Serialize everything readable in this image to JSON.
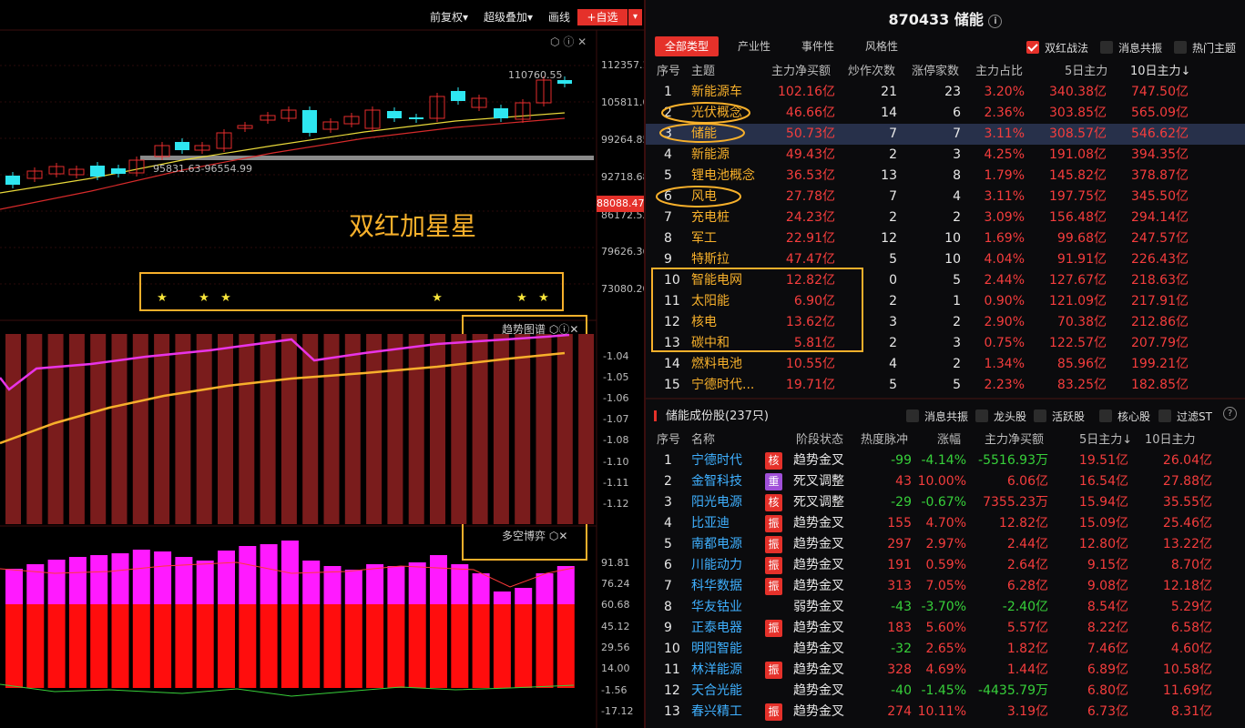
{
  "toolbar": {
    "fq": "前复权▾",
    "super": "超级叠加▾",
    "draw": "画线",
    "add": "+自选",
    "arrow": "▾"
  },
  "chart": {
    "price_max_label": "110760.55",
    "price_min_label": "95831.63-96554.99",
    "current_price": "88088.47",
    "annotation": "双红加星星",
    "y_ticks": [
      "112357.1",
      "105811.0",
      "99264.85",
      "92718.68",
      "86172.52",
      "79626.36",
      "73080.20"
    ],
    "panel2_title": "趋势图谱",
    "panel2_ticks": [
      "-1.04",
      "-1.05",
      "-1.06",
      "-1.07",
      "-1.08",
      "-1.10",
      "-1.11",
      "-1.12"
    ],
    "panel3_title": "多空博弈",
    "panel3_ticks": [
      "91.81",
      "76.24",
      "60.68",
      "45.12",
      "29.56",
      "14.00",
      "-1.56",
      "-17.12"
    ]
  },
  "stock": {
    "title": "870433 储能",
    "info_icon": "info-icon"
  },
  "theme_tabs": [
    "全部类型",
    "产业性",
    "事件性",
    "风格性"
  ],
  "theme_checks": [
    "双红战法",
    "消息共振",
    "热门主题"
  ],
  "theme_headers": [
    "序号",
    "主题",
    "主力净买额",
    "炒作次数",
    "涨停家数",
    "主力占比",
    "5日主力",
    "10日主力↓"
  ],
  "themes": [
    {
      "no": "1",
      "name": "新能源车",
      "net": "102.16亿",
      "times": "21",
      "limit": "23",
      "ratio": "3.20%",
      "d5": "340.38亿",
      "d10": "747.50亿"
    },
    {
      "no": "2",
      "name": "光伏概念",
      "net": "46.66亿",
      "times": "14",
      "limit": "6",
      "ratio": "2.36%",
      "d5": "303.85亿",
      "d10": "565.09亿"
    },
    {
      "no": "3",
      "name": "储能",
      "net": "50.73亿",
      "times": "7",
      "limit": "7",
      "ratio": "3.11%",
      "d5": "308.57亿",
      "d10": "546.62亿"
    },
    {
      "no": "4",
      "name": "新能源",
      "net": "49.43亿",
      "times": "2",
      "limit": "3",
      "ratio": "4.25%",
      "d5": "191.08亿",
      "d10": "394.35亿"
    },
    {
      "no": "5",
      "name": "锂电池概念",
      "net": "36.53亿",
      "times": "13",
      "limit": "8",
      "ratio": "1.79%",
      "d5": "145.82亿",
      "d10": "378.87亿"
    },
    {
      "no": "6",
      "name": "风电",
      "net": "27.78亿",
      "times": "7",
      "limit": "4",
      "ratio": "3.11%",
      "d5": "197.75亿",
      "d10": "345.50亿"
    },
    {
      "no": "7",
      "name": "充电桩",
      "net": "24.23亿",
      "times": "2",
      "limit": "2",
      "ratio": "3.09%",
      "d5": "156.48亿",
      "d10": "294.14亿"
    },
    {
      "no": "8",
      "name": "军工",
      "net": "22.91亿",
      "times": "12",
      "limit": "10",
      "ratio": "1.69%",
      "d5": "99.68亿",
      "d10": "247.57亿"
    },
    {
      "no": "9",
      "name": "特斯拉",
      "net": "47.47亿",
      "times": "5",
      "limit": "10",
      "ratio": "4.04%",
      "d5": "91.91亿",
      "d10": "226.43亿"
    },
    {
      "no": "10",
      "name": "智能电网",
      "net": "12.82亿",
      "times": "0",
      "limit": "5",
      "ratio": "2.44%",
      "d5": "127.67亿",
      "d10": "218.63亿"
    },
    {
      "no": "11",
      "name": "太阳能",
      "net": "6.90亿",
      "times": "2",
      "limit": "1",
      "ratio": "0.90%",
      "d5": "121.09亿",
      "d10": "217.91亿"
    },
    {
      "no": "12",
      "name": "核电",
      "net": "13.62亿",
      "times": "3",
      "limit": "2",
      "ratio": "2.90%",
      "d5": "70.38亿",
      "d10": "212.86亿"
    },
    {
      "no": "13",
      "name": "碳中和",
      "net": "5.81亿",
      "times": "2",
      "limit": "3",
      "ratio": "0.75%",
      "d5": "122.57亿",
      "d10": "207.79亿"
    },
    {
      "no": "14",
      "name": "燃料电池",
      "net": "10.55亿",
      "times": "4",
      "limit": "2",
      "ratio": "1.34%",
      "d5": "85.96亿",
      "d10": "199.21亿"
    },
    {
      "no": "15",
      "name": "宁德时代...",
      "net": "19.71亿",
      "times": "5",
      "limit": "5",
      "ratio": "2.23%",
      "d5": "83.25亿",
      "d10": "182.85亿"
    }
  ],
  "stocks_title": "储能成份股(237只)",
  "stock_checks": [
    "消息共振",
    "龙头股",
    "活跃股",
    "核心股",
    "过滤ST"
  ],
  "stock_headers": [
    "序号",
    "名称",
    "阶段状态",
    "热度脉冲",
    "涨幅",
    "主力净买额",
    "5日主力↓",
    "10日主力"
  ],
  "stocks": [
    {
      "no": "1",
      "name": "宁德时代",
      "tag": "核",
      "tagc": "r",
      "state": "趋势金叉",
      "heat": "-99",
      "chg": "-4.14%",
      "net": "-5516.93万",
      "d5": "19.51亿",
      "d10": "26.04亿"
    },
    {
      "no": "2",
      "name": "金智科技",
      "tag": "重",
      "tagc": "p",
      "state": "死叉调整",
      "heat": "43",
      "chg": "10.00%",
      "net": "6.06亿",
      "d5": "16.54亿",
      "d10": "27.88亿"
    },
    {
      "no": "3",
      "name": "阳光电源",
      "tag": "核",
      "tagc": "r",
      "state": "死叉调整",
      "heat": "-29",
      "chg": "-0.67%",
      "net": "7355.23万",
      "d5": "15.94亿",
      "d10": "35.55亿"
    },
    {
      "no": "4",
      "name": "比亚迪",
      "tag": "振",
      "tagc": "r",
      "state": "趋势金叉",
      "heat": "155",
      "chg": "4.70%",
      "net": "12.82亿",
      "d5": "15.09亿",
      "d10": "25.46亿"
    },
    {
      "no": "5",
      "name": "南都电源",
      "tag": "振",
      "tagc": "r",
      "state": "趋势金叉",
      "heat": "297",
      "chg": "2.97%",
      "net": "2.44亿",
      "d5": "12.80亿",
      "d10": "13.22亿"
    },
    {
      "no": "6",
      "name": "川能动力",
      "tag": "振",
      "tagc": "r",
      "state": "趋势金叉",
      "heat": "191",
      "chg": "0.59%",
      "net": "2.64亿",
      "d5": "9.15亿",
      "d10": "8.70亿"
    },
    {
      "no": "7",
      "name": "科华数据",
      "tag": "振",
      "tagc": "r",
      "state": "趋势金叉",
      "heat": "313",
      "chg": "7.05%",
      "net": "6.28亿",
      "d5": "9.08亿",
      "d10": "12.18亿"
    },
    {
      "no": "8",
      "name": "华友钴业",
      "tag": "",
      "tagc": "",
      "state": "弱势金叉",
      "heat": "-43",
      "chg": "-3.70%",
      "net": "-2.40亿",
      "d5": "8.54亿",
      "d10": "5.29亿"
    },
    {
      "no": "9",
      "name": "正泰电器",
      "tag": "振",
      "tagc": "r",
      "state": "趋势金叉",
      "heat": "183",
      "chg": "5.60%",
      "net": "5.57亿",
      "d5": "8.22亿",
      "d10": "6.58亿"
    },
    {
      "no": "10",
      "name": "明阳智能",
      "tag": "",
      "tagc": "",
      "state": "趋势金叉",
      "heat": "-32",
      "chg": "2.65%",
      "net": "1.82亿",
      "d5": "7.46亿",
      "d10": "4.60亿"
    },
    {
      "no": "11",
      "name": "林洋能源",
      "tag": "振",
      "tagc": "r",
      "state": "趋势金叉",
      "heat": "328",
      "chg": "4.69%",
      "net": "1.44亿",
      "d5": "6.89亿",
      "d10": "10.58亿"
    },
    {
      "no": "12",
      "name": "天合光能",
      "tag": "",
      "tagc": "",
      "state": "趋势金叉",
      "heat": "-40",
      "chg": "-1.45%",
      "net": "-4435.79万",
      "d5": "6.80亿",
      "d10": "11.69亿"
    },
    {
      "no": "13",
      "name": "春兴精工",
      "tag": "振",
      "tagc": "r",
      "state": "趋势金叉",
      "heat": "274",
      "chg": "10.11%",
      "net": "3.19亿",
      "d5": "6.73亿",
      "d10": "8.31亿"
    }
  ],
  "colors": {
    "up": "#f53d3d",
    "down": "#37d03a",
    "accent": "#e5312a",
    "highlight": "#f7b02b"
  }
}
